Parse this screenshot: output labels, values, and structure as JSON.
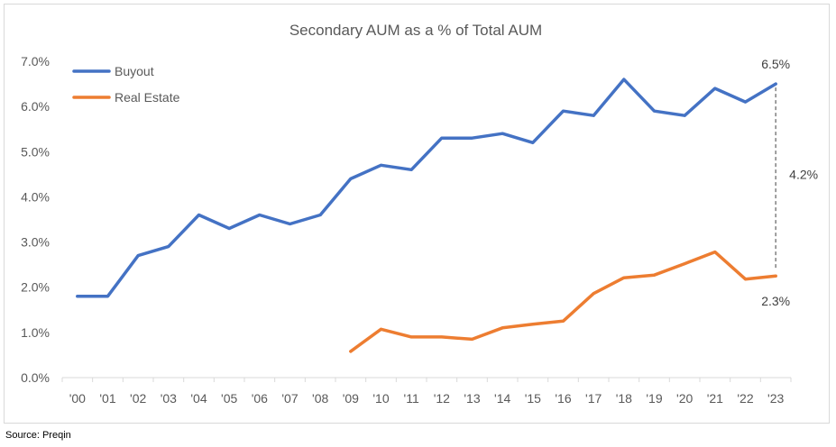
{
  "source_note": "Source: Preqin",
  "chart_data": {
    "type": "line",
    "title": "Secondary AUM as a % of Total AUM",
    "xlabel": "",
    "ylabel": "",
    "ylim": [
      0,
      7
    ],
    "y_ticks": [
      "0.0%",
      "1.0%",
      "2.0%",
      "3.0%",
      "4.0%",
      "5.0%",
      "6.0%",
      "7.0%"
    ],
    "categories": [
      "'00",
      "'01",
      "'02",
      "'03",
      "'04",
      "'05",
      "'06",
      "'07",
      "'08",
      "'09",
      "'10",
      "'11",
      "'12",
      "'13",
      "'14",
      "'15",
      "'16",
      "'17",
      "'18",
      "'19",
      "'20",
      "'21",
      "'22",
      "'23"
    ],
    "legend_position": "top-left",
    "grid": false,
    "series": [
      {
        "name": "Buyout",
        "color": "#4472C4",
        "values": [
          1.8,
          1.8,
          2.7,
          2.9,
          3.6,
          3.3,
          3.6,
          3.4,
          3.6,
          4.4,
          4.7,
          4.6,
          5.3,
          5.3,
          5.4,
          5.2,
          5.9,
          5.8,
          6.6,
          5.9,
          5.8,
          6.4,
          6.1,
          6.5
        ]
      },
      {
        "name": "Real Estate",
        "color": "#ED7D31",
        "values": [
          null,
          null,
          null,
          null,
          null,
          null,
          null,
          null,
          null,
          0.58,
          1.07,
          0.9,
          0.9,
          0.85,
          1.1,
          1.18,
          1.25,
          1.86,
          2.21,
          2.27,
          2.52,
          2.78,
          2.18,
          2.25
        ]
      }
    ],
    "annotations": {
      "buyout_end": "6.5%",
      "real_estate_end": "2.3%",
      "gap": "4.2%"
    }
  }
}
